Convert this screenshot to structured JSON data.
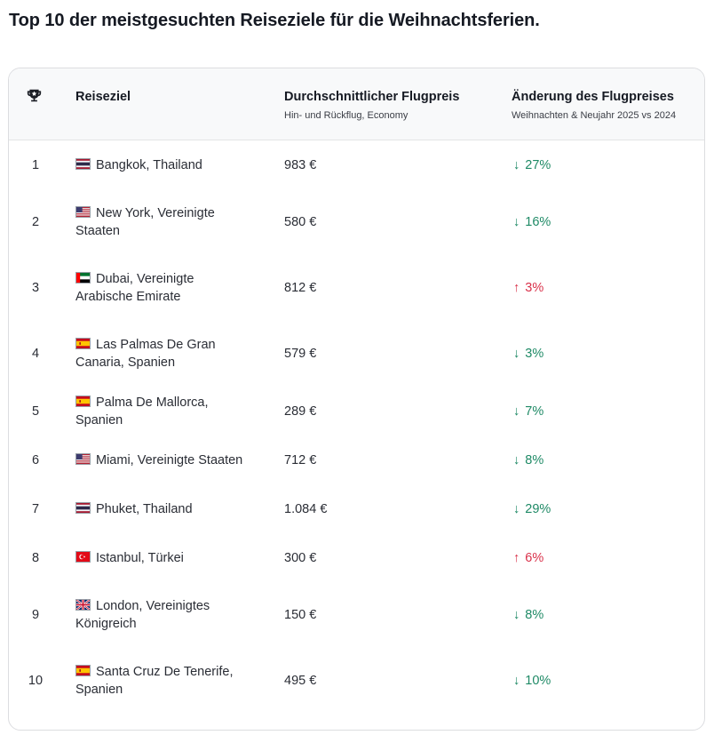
{
  "page": {
    "title": "Top 10 der meistgesuchten Reiseziele für die Weihnachtsferien."
  },
  "table": {
    "header": {
      "rank_icon": "trophy-icon",
      "destination": {
        "label": "Reiseziel"
      },
      "price": {
        "label": "Durchschnittlicher Flugpreis",
        "sub": "Hin- und Rückflug, Economy"
      },
      "change": {
        "label": "Änderung des Flugpreises",
        "sub": "Weihnachten & Neujahr 2025 vs 2024"
      }
    },
    "colors": {
      "decrease": "#1f8a66",
      "increase": "#d9314a",
      "header_bg": "#f8f9fa",
      "border": "#dcdde0"
    },
    "rows": [
      {
        "rank": "1",
        "flag": "thailand-flag-icon",
        "destination": "Bangkok, Thailand",
        "price": "983 €",
        "direction": "down",
        "arrow": "↓",
        "change": "27%"
      },
      {
        "rank": "2",
        "flag": "usa-flag-icon",
        "destination": "New York, Vereinigte Staaten",
        "price": "580 €",
        "direction": "down",
        "arrow": "↓",
        "change": "16%"
      },
      {
        "rank": "3",
        "flag": "uae-flag-icon",
        "destination": "Dubai, Vereinigte Arabische Emirate",
        "price": "812 €",
        "direction": "up",
        "arrow": "↑",
        "change": "3%"
      },
      {
        "rank": "4",
        "flag": "spain-flag-icon",
        "destination": "Las Palmas De Gran Canaria, Spanien",
        "price": "579 €",
        "direction": "down",
        "arrow": "↓",
        "change": "3%"
      },
      {
        "rank": "5",
        "flag": "spain-flag-icon",
        "destination": "Palma De Mallorca, Spanien",
        "price": "289 €",
        "direction": "down",
        "arrow": "↓",
        "change": "7%"
      },
      {
        "rank": "6",
        "flag": "usa-flag-icon",
        "destination": "Miami, Vereinigte Staaten",
        "price": "712 €",
        "direction": "down",
        "arrow": "↓",
        "change": "8%"
      },
      {
        "rank": "7",
        "flag": "thailand-flag-icon",
        "destination": "Phuket, Thailand",
        "price": "1.084 €",
        "direction": "down",
        "arrow": "↓",
        "change": "29%"
      },
      {
        "rank": "8",
        "flag": "turkey-flag-icon",
        "destination": "Istanbul, Türkei",
        "price": "300 €",
        "direction": "up",
        "arrow": "↑",
        "change": "6%"
      },
      {
        "rank": "9",
        "flag": "uk-flag-icon",
        "destination": "London, Vereinigtes Königreich",
        "price": "150 €",
        "direction": "down",
        "arrow": "↓",
        "change": "8%"
      },
      {
        "rank": "10",
        "flag": "spain-flag-icon",
        "destination": "Santa Cruz De Tenerife, Spanien",
        "price": "495 €",
        "direction": "down",
        "arrow": "↓",
        "change": "10%"
      }
    ]
  }
}
